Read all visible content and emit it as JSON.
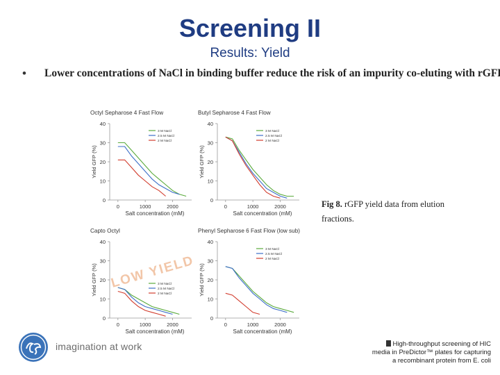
{
  "slide": {
    "title": "Screening II",
    "subtitle": "Results: Yield",
    "bullet": "Lower concentrations of NaCl in binding buffer reduce the risk of an impurity co-eluting with rGFP",
    "caption_label": "Fig 8.",
    "caption_text": "rGFP yield data from elution fractions.",
    "footer_tagline": "imagination at work",
    "source_line1": "High-throughput screening of HIC",
    "source_line2": "media in PreDictor™ plates for capturing",
    "source_line3": "a recombinant protein from E. coli",
    "colors": {
      "title": "#1f3c82",
      "series_3M": "#5aaa3c",
      "series_2_5M": "#3c6ec8",
      "series_2M": "#d23c2d"
    },
    "icons": [
      "ge-logo-icon",
      "document-icon"
    ]
  },
  "chart_data": [
    {
      "type": "line",
      "title": "Octyl Sepharose 4 Fast Flow",
      "xlabel": "Salt concentration (mM)",
      "ylabel": "Yield GFP (%)",
      "xlim": [
        -300,
        2700
      ],
      "ylim": [
        0,
        40
      ],
      "xticks": [
        0,
        1000,
        2000
      ],
      "yticks": [
        0,
        10,
        20,
        30,
        40
      ],
      "legend": "top-right",
      "grid": false,
      "series": [
        {
          "name": "3 M NaCl",
          "x": [
            0,
            250,
            500,
            750,
            1000,
            1250,
            1500,
            1750,
            2000,
            2250,
            2500
          ],
          "values": [
            30,
            30,
            26,
            22,
            18,
            14,
            11,
            8,
            5,
            3,
            2
          ]
        },
        {
          "name": "2.5 M NaCl",
          "x": [
            0,
            250,
            500,
            750,
            1000,
            1250,
            1500,
            1750,
            2000,
            2250
          ],
          "values": [
            28,
            28,
            23,
            19,
            15,
            11,
            8,
            6,
            4,
            3
          ]
        },
        {
          "name": "2 M NaCl",
          "x": [
            0,
            250,
            500,
            750,
            1000,
            1250,
            1500,
            1750
          ],
          "values": [
            21,
            21,
            17,
            13,
            10,
            7,
            5,
            2
          ]
        }
      ]
    },
    {
      "type": "line",
      "title": "Butyl Sepharose 4 Fast Flow",
      "xlabel": "Salt concentration (mM)",
      "ylabel": "Yield GFP (%)",
      "xlim": [
        -300,
        2700
      ],
      "ylim": [
        0,
        40
      ],
      "xticks": [
        0,
        1000,
        2000
      ],
      "yticks": [
        0,
        10,
        20,
        30,
        40
      ],
      "legend": "top-right",
      "grid": false,
      "series": [
        {
          "name": "3 M NaCl",
          "x": [
            0,
            250,
            500,
            750,
            1000,
            1250,
            1500,
            1750,
            2000,
            2250,
            2500
          ],
          "values": [
            33,
            32,
            26,
            21,
            16,
            12,
            8,
            5,
            3,
            2,
            2
          ]
        },
        {
          "name": "2.5 M NaCl",
          "x": [
            0,
            250,
            500,
            750,
            1000,
            1250,
            1500,
            1750,
            2000,
            2250
          ],
          "values": [
            33,
            31,
            25,
            19,
            14,
            10,
            6,
            4,
            2,
            1
          ]
        },
        {
          "name": "2 M NaCl",
          "x": [
            0,
            250,
            500,
            750,
            1000,
            1250,
            1500,
            1750,
            2000
          ],
          "values": [
            33,
            31,
            24,
            18,
            13,
            8,
            4,
            2,
            1
          ]
        }
      ]
    },
    {
      "type": "line",
      "title": "Capto Octyl",
      "xlabel": "Salt concentration (mM)",
      "ylabel": "Yield GFP (%)",
      "xlim": [
        -300,
        2700
      ],
      "ylim": [
        0,
        40
      ],
      "xticks": [
        0,
        1000,
        2000
      ],
      "yticks": [
        0,
        10,
        20,
        30,
        40
      ],
      "legend": "center-right",
      "grid": false,
      "annotation": "LOW YIELD",
      "series": [
        {
          "name": "3 M NaCl",
          "x": [
            0,
            250,
            500,
            750,
            1000,
            1250,
            1500,
            1750,
            2000,
            2250
          ],
          "values": [
            16,
            15,
            12,
            10,
            8,
            6,
            5,
            4,
            3,
            2
          ]
        },
        {
          "name": "2.5 M NaCl",
          "x": [
            0,
            250,
            500,
            750,
            1000,
            1250,
            1500,
            1750,
            2000
          ],
          "values": [
            16,
            15,
            11,
            8,
            6,
            5,
            4,
            3,
            2
          ]
        },
        {
          "name": "2 M NaCl",
          "x": [
            0,
            250,
            500,
            750,
            1000,
            1250,
            1500,
            1750
          ],
          "values": [
            14,
            13,
            9,
            6,
            4,
            3,
            2,
            1
          ]
        }
      ]
    },
    {
      "type": "line",
      "title": "Phenyl Sepharose 6 Fast Flow (low sub)",
      "xlabel": "Salt concentration (mM)",
      "ylabel": "Yield GFP (%)",
      "xlim": [
        -300,
        2700
      ],
      "ylim": [
        0,
        40
      ],
      "xticks": [
        0,
        1000,
        2000
      ],
      "yticks": [
        0,
        10,
        20,
        30,
        40
      ],
      "legend": "top-right",
      "grid": false,
      "series": [
        {
          "name": "3 M NaCl",
          "x": [
            0,
            250,
            500,
            750,
            1000,
            1250,
            1500,
            1750,
            2000,
            2250,
            2500
          ],
          "values": [
            27,
            26,
            22,
            18,
            14,
            11,
            8,
            6,
            5,
            4,
            3
          ]
        },
        {
          "name": "2.5 M NaCl",
          "x": [
            0,
            250,
            500,
            750,
            1000,
            1250,
            1500,
            1750,
            2000,
            2250
          ],
          "values": [
            27,
            26,
            21,
            17,
            13,
            10,
            7,
            5,
            4,
            3
          ]
        },
        {
          "name": "2 M NaCl",
          "x": [
            0,
            250,
            500,
            750,
            1000,
            1250
          ],
          "values": [
            13,
            12,
            9,
            6,
            3,
            2
          ]
        }
      ]
    }
  ]
}
